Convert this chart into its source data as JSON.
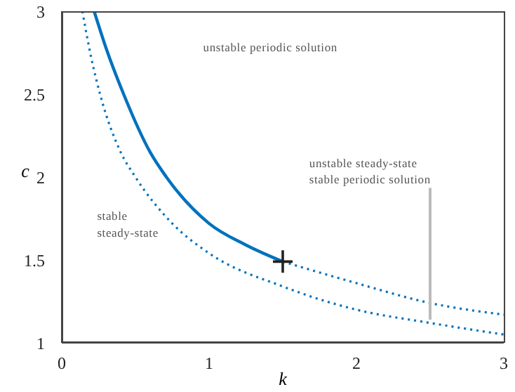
{
  "chart_data": {
    "type": "line",
    "xlabel": "k",
    "ylabel": "c",
    "xlim": [
      0,
      3
    ],
    "ylim": [
      1,
      3
    ],
    "xticks": [
      0,
      1,
      2,
      3
    ],
    "yticks": [
      1,
      1.5,
      2,
      2.5,
      3
    ],
    "series": [
      {
        "color": "#0072bd",
        "line_style": "solid",
        "x": [
          0.22,
          0.3,
          0.42,
          0.6,
          0.71,
          1,
          1.25,
          1.5
        ],
        "values": [
          3,
          2.78,
          2.5,
          2.15,
          2,
          1.72,
          1.59,
          1.49
        ]
      },
      {
        "color": "#0072bd",
        "line_style": "dotted",
        "x": [
          1.5,
          2,
          2.5,
          3
        ],
        "values": [
          1.49,
          1.36,
          1.24,
          1.17
        ]
      },
      {
        "color": "#0072bd",
        "line_style": "dotted",
        "x": [
          0.14,
          0.2,
          0.26,
          0.4,
          0.5,
          0.75,
          1,
          1.5,
          2,
          2.5,
          3
        ],
        "values": [
          3,
          2.72,
          2.5,
          2.15,
          2,
          1.72,
          1.54,
          1.34,
          1.2,
          1.12,
          1.05
        ]
      },
      {
        "type": "scatter",
        "color": "#222222",
        "marker": "cross",
        "x": [
          1.5
        ],
        "values": [
          1.49
        ]
      }
    ],
    "annotations": [
      "unstable periodic solution",
      "stable",
      "steady-state",
      "unstable steady-state",
      {
        "text": "stable periodic solution",
        "x": 2.5,
        "y": 1.14
      }
    ]
  }
}
